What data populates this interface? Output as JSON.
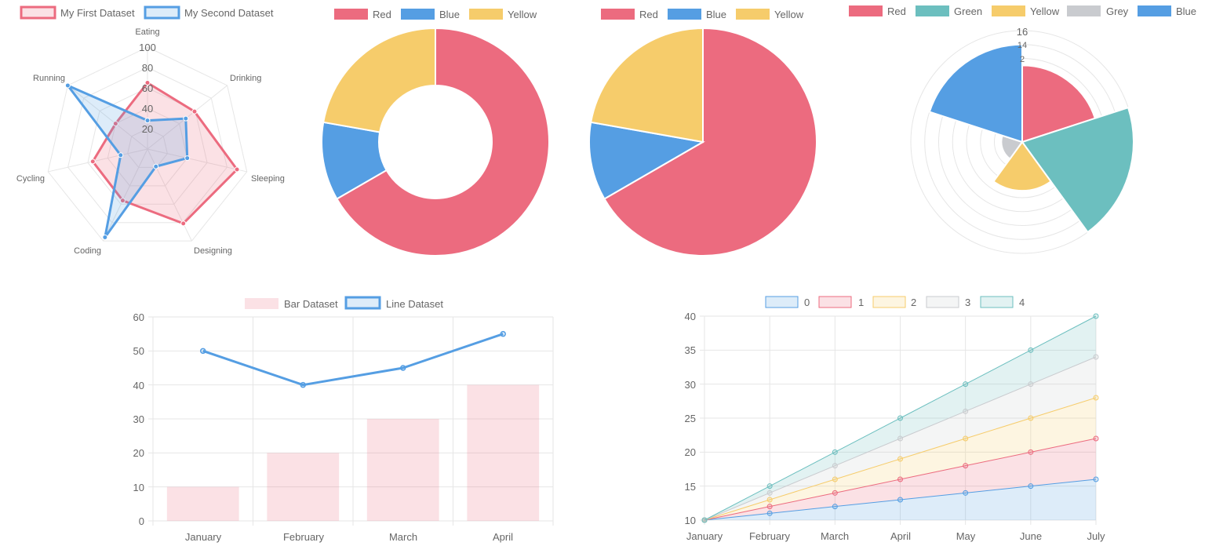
{
  "colors": {
    "red": "#ec6b7f",
    "blue": "#559ee3",
    "yellow": "#f6cc6b",
    "green": "#6cbfbf",
    "grey": "#c9cbcf",
    "grid": "#e6e6e6",
    "text": "#666666"
  },
  "chart_data": [
    {
      "type": "radar",
      "legend": [
        "My First Dataset",
        "My Second Dataset"
      ],
      "categories": [
        "Eating",
        "Drinking",
        "Sleeping",
        "Designing",
        "Coding",
        "Cycling",
        "Running"
      ],
      "ticks": [
        "20",
        "40",
        "60",
        "80",
        "100"
      ],
      "rlim": [
        0,
        100
      ],
      "series": [
        {
          "name": "My First Dataset",
          "color": "red",
          "values": [
            65,
            59,
            90,
            81,
            56,
            55,
            40
          ]
        },
        {
          "name": "My Second Dataset",
          "color": "blue",
          "values": [
            28,
            48,
            40,
            19,
            96,
            27,
            100
          ]
        }
      ]
    },
    {
      "type": "doughnut",
      "labels": [
        "Red",
        "Blue",
        "Yellow"
      ],
      "colors": [
        "red",
        "blue",
        "yellow"
      ],
      "values": [
        300,
        50,
        100
      ]
    },
    {
      "type": "pie",
      "labels": [
        "Red",
        "Blue",
        "Yellow"
      ],
      "colors": [
        "red",
        "blue",
        "yellow"
      ],
      "values": [
        300,
        50,
        100
      ]
    },
    {
      "type": "polarArea",
      "labels": [
        "Red",
        "Green",
        "Yellow",
        "Grey",
        "Blue"
      ],
      "colors": [
        "red",
        "green",
        "yellow",
        "grey",
        "blue"
      ],
      "values": [
        11,
        16,
        7,
        3,
        14
      ],
      "ticks": [
        "2",
        "14",
        "16"
      ],
      "rlim": [
        0,
        16
      ]
    },
    {
      "type": "bar",
      "legend": [
        "Bar Dataset",
        "Line Dataset"
      ],
      "categories": [
        "January",
        "February",
        "March",
        "April"
      ],
      "ylim": [
        0,
        60
      ],
      "yticks": [
        "0",
        "10",
        "20",
        "30",
        "40",
        "50",
        "60"
      ],
      "series": [
        {
          "name": "Bar Dataset",
          "type": "bar",
          "color": "red",
          "values": [
            10,
            20,
            30,
            40
          ]
        },
        {
          "name": "Line Dataset",
          "type": "line",
          "color": "blue",
          "values": [
            50,
            40,
            45,
            55
          ]
        }
      ]
    },
    {
      "type": "area",
      "stacked": true,
      "legend": [
        "0",
        "1",
        "2",
        "3",
        "4"
      ],
      "categories": [
        "January",
        "February",
        "March",
        "April",
        "May",
        "June",
        "July"
      ],
      "ylim": [
        10,
        40
      ],
      "yticks": [
        "10",
        "15",
        "20",
        "25",
        "30",
        "35",
        "40"
      ],
      "series": [
        {
          "name": "0",
          "color": "blue",
          "values": [
            10,
            11,
            12,
            13,
            14,
            15,
            16
          ]
        },
        {
          "name": "1",
          "color": "red",
          "values": [
            10,
            12,
            14,
            16,
            18,
            20,
            22
          ]
        },
        {
          "name": "2",
          "color": "yellow",
          "values": [
            10,
            13,
            16,
            19,
            22,
            25,
            28
          ]
        },
        {
          "name": "3",
          "color": "grey",
          "values": [
            10,
            14,
            18,
            22,
            26,
            30,
            34
          ]
        },
        {
          "name": "4",
          "color": "green",
          "values": [
            10,
            15,
            20,
            25,
            30,
            35,
            40
          ]
        }
      ]
    }
  ]
}
